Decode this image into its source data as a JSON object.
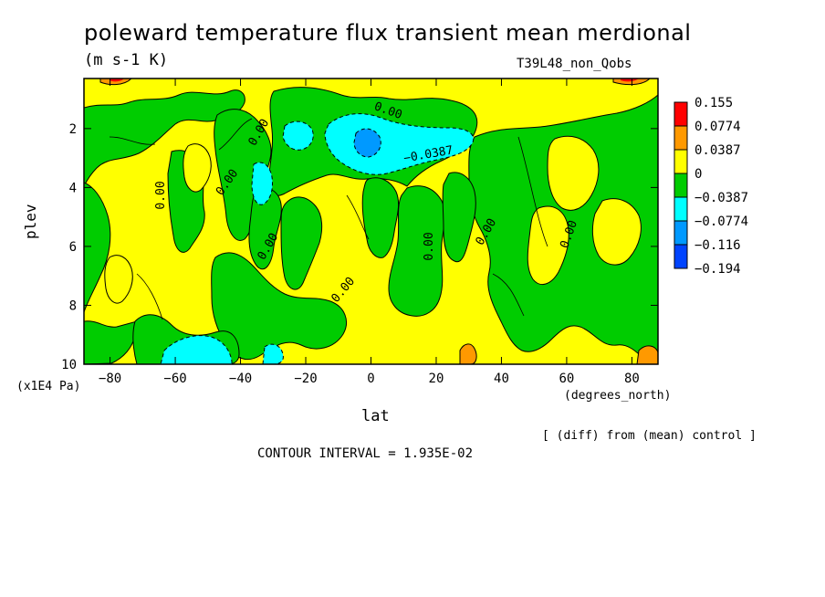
{
  "title": "poleward temperature flux transient mean merdional",
  "units": "(m s-1 K)",
  "run_label": "T39L48_non_Qobs",
  "diff_note": "[ (diff) from (mean) control ]",
  "contour_interval": "CONTOUR INTERVAL = 1.935E-02",
  "chart_data": {
    "type": "heatmap",
    "title": "poleward temperature flux transient mean merdional",
    "xlabel": "lat",
    "x_units": "(degrees_north)",
    "ylabel": "plev",
    "y_units": "(x1E4 Pa)",
    "xlim": [
      -88,
      88
    ],
    "ylim": [
      10,
      0.3
    ],
    "x_ticks": [
      -80,
      -60,
      -40,
      -20,
      0,
      20,
      40,
      60,
      80
    ],
    "y_ticks": [
      2,
      4,
      6,
      8,
      10
    ],
    "colorbar": {
      "labels": [
        "0.155",
        "0.0774",
        "0.0387",
        "0",
        "-0.0387",
        "-0.0774",
        "-0.116",
        "-0.194"
      ],
      "colors": [
        "#ff0000",
        "#ff9900",
        "#ffff00",
        "#00cc00",
        "#00ffff",
        "#0099ff",
        "#0044ff"
      ]
    },
    "contour_labels": [
      "0.00",
      "0.00",
      "0.00",
      "0.00",
      "0.00",
      "0.00",
      "0.00",
      "0.00",
      "0.00",
      "-0.0387"
    ],
    "grid": false,
    "legend": "right"
  }
}
